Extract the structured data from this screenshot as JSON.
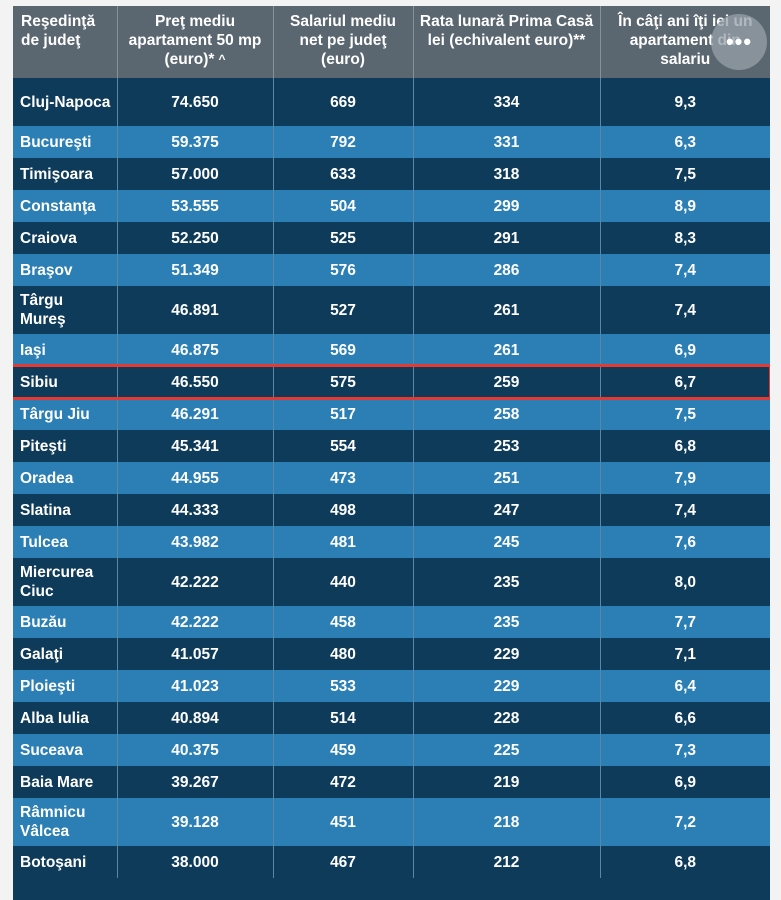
{
  "chart_data": {
    "type": "table",
    "columns": [
      "Reşedinţă de judeţ",
      "Preţ mediu apartament 50 mp (euro)*",
      "Salariul mediu net pe judeţ (euro)",
      "Rata lunară Prima Casă lei (echivalent euro)**",
      "În câţi ani îţi iei un apartament din salariu"
    ],
    "sort_indicator": "^",
    "highlighted_row": "Sibiu",
    "rows": [
      [
        "Cluj-Napoca",
        "74.650",
        "669",
        "334",
        "9,3"
      ],
      [
        "Bucureşti",
        "59.375",
        "792",
        "331",
        "6,3"
      ],
      [
        "Timişoara",
        "57.000",
        "633",
        "318",
        "7,5"
      ],
      [
        "Constanţa",
        "53.555",
        "504",
        "299",
        "8,9"
      ],
      [
        "Craiova",
        "52.250",
        "525",
        "291",
        "8,3"
      ],
      [
        "Braşov",
        "51.349",
        "576",
        "286",
        "7,4"
      ],
      [
        "Târgu Mureş",
        "46.891",
        "527",
        "261",
        "7,4"
      ],
      [
        "Iaşi",
        "46.875",
        "569",
        "261",
        "6,9"
      ],
      [
        "Sibiu",
        "46.550",
        "575",
        "259",
        "6,7"
      ],
      [
        "Târgu Jiu",
        "46.291",
        "517",
        "258",
        "7,5"
      ],
      [
        "Piteşti",
        "45.341",
        "554",
        "253",
        "6,8"
      ],
      [
        "Oradea",
        "44.955",
        "473",
        "251",
        "7,9"
      ],
      [
        "Slatina",
        "44.333",
        "498",
        "247",
        "7,4"
      ],
      [
        "Tulcea",
        "43.982",
        "481",
        "245",
        "7,6"
      ],
      [
        "Miercurea Ciuc",
        "42.222",
        "440",
        "235",
        "8,0"
      ],
      [
        "Buzău",
        "42.222",
        "458",
        "235",
        "7,7"
      ],
      [
        "Galaţi",
        "41.057",
        "480",
        "229",
        "7,1"
      ],
      [
        "Ploieşti",
        "41.023",
        "533",
        "229",
        "6,4"
      ],
      [
        "Alba Iulia",
        "40.894",
        "514",
        "228",
        "6,6"
      ],
      [
        "Suceava",
        "40.375",
        "459",
        "225",
        "7,3"
      ],
      [
        "Baia Mare",
        "39.267",
        "472",
        "219",
        "6,9"
      ],
      [
        "Râmnicu Vâlcea",
        "39.128",
        "451",
        "218",
        "7,2"
      ],
      [
        "Botoşani",
        "38.000",
        "467",
        "212",
        "6,8"
      ]
    ]
  },
  "more_button": {
    "label": "•••"
  },
  "colors": {
    "header_bg": "#5b6770",
    "row_dark": "#0f3b5a",
    "row_light": "#2b7fb5",
    "highlight_border": "#e53935"
  }
}
